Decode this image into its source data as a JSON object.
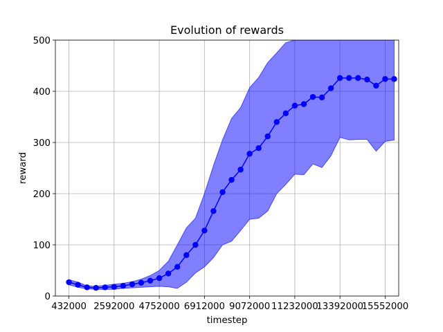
{
  "chart_data": {
    "type": "line",
    "title": "Evolution of rewards",
    "xlabel": "timestep",
    "ylabel": "reward",
    "xlim": [
      -216000,
      16200000
    ],
    "ylim": [
      0,
      500
    ],
    "grid": true,
    "colors": {
      "line": "#0000ff",
      "band": "#0000ff",
      "band_opacity": 0.5
    },
    "x_ticks": [
      432000,
      2592000,
      4752000,
      6912000,
      9072000,
      11232000,
      13392000,
      15552000
    ],
    "x_tick_labels": [
      "432000",
      "2592000",
      "4752000",
      "6912000",
      "9072000",
      "11232000",
      "13392000",
      "15552000"
    ],
    "y_ticks": [
      0,
      100,
      200,
      300,
      400,
      500
    ],
    "y_tick_labels": [
      "0",
      "100",
      "200",
      "300",
      "400",
      "500"
    ],
    "series": [
      {
        "x": [
          432000,
          864000,
          1296000,
          1728000,
          2160000,
          2592000,
          3024000,
          3456000,
          3888000,
          4320000,
          4752000,
          5184000,
          5616000,
          6048000,
          6480000,
          6912000,
          7344000,
          7776000,
          8208000,
          8640000,
          9072000,
          9504000,
          9936000,
          10368000,
          10800000,
          11232000,
          11664000,
          12096000,
          12528000,
          12960000,
          13392000,
          13824000,
          14256000,
          14688000,
          15120000,
          15552000,
          15984000
        ],
        "mean": [
          27,
          22,
          17,
          16,
          17,
          18,
          20,
          23,
          26,
          30,
          35,
          44,
          57,
          80,
          100,
          128,
          166,
          203,
          227,
          247,
          278,
          289,
          312,
          340,
          357,
          372,
          375,
          389,
          388,
          406,
          426,
          426,
          426,
          423,
          411,
          424,
          424
        ],
        "upper": [
          32,
          27,
          20,
          19,
          21,
          23,
          25,
          28,
          33,
          40,
          50,
          68,
          100,
          133,
          152,
          200,
          255,
          305,
          347,
          368,
          407,
          427,
          456,
          475,
          495,
          500,
          500,
          500,
          500,
          500,
          500,
          500,
          500,
          500,
          500,
          500,
          500
        ],
        "lower": [
          22,
          17,
          14,
          13,
          13,
          13,
          15,
          16,
          17,
          18,
          19,
          18,
          15,
          27,
          45,
          57,
          75,
          100,
          107,
          128,
          150,
          152,
          166,
          200,
          218,
          238,
          237,
          258,
          251,
          274,
          310,
          305,
          306,
          306,
          283,
          302,
          305
        ]
      }
    ]
  }
}
